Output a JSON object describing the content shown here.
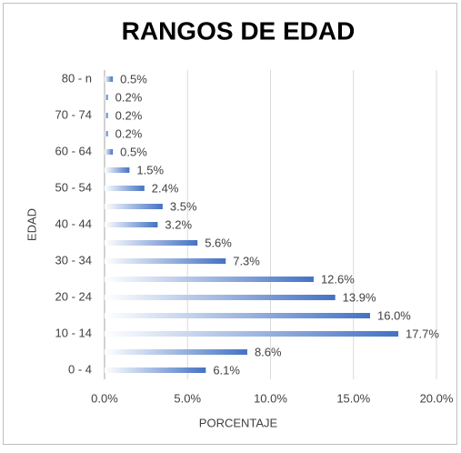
{
  "chart_data": {
    "type": "bar",
    "orientation": "horizontal",
    "title": "RANGOS DE EDAD",
    "x_label": "PORCENTAJE",
    "y_label": "EDAD",
    "categories": [
      "0 - 4",
      null,
      "10 - 14",
      null,
      "20 - 24",
      null,
      "30 - 34",
      null,
      "40 - 44",
      null,
      "50 - 54",
      null,
      "60 - 64",
      null,
      "70 - 74",
      null,
      "80 - n"
    ],
    "values": [
      6.1,
      8.6,
      17.7,
      16.0,
      13.9,
      12.6,
      7.3,
      5.6,
      3.2,
      3.5,
      2.4,
      1.5,
      0.5,
      0.2,
      0.2,
      0.2,
      0.5
    ],
    "value_labels": [
      "6.1%",
      "8.6%",
      "17.7%",
      "16.0%",
      "13.9%",
      "12.6%",
      "7.3%",
      "5.6%",
      "3.2%",
      "3.5%",
      "2.4%",
      "1.5%",
      "0.5%",
      "0.2%",
      "0.2%",
      "0.2%",
      "0.5%"
    ],
    "color": "#4472c4",
    "xlim": [
      0,
      20
    ],
    "xticks": [
      {
        "value": 0,
        "label": "0.0%"
      },
      {
        "value": 5,
        "label": "5.0%"
      },
      {
        "value": 10,
        "label": "10.0%"
      },
      {
        "value": 15,
        "label": "15.0%"
      },
      {
        "value": 20,
        "label": "20.0%"
      }
    ],
    "grid": true
  }
}
